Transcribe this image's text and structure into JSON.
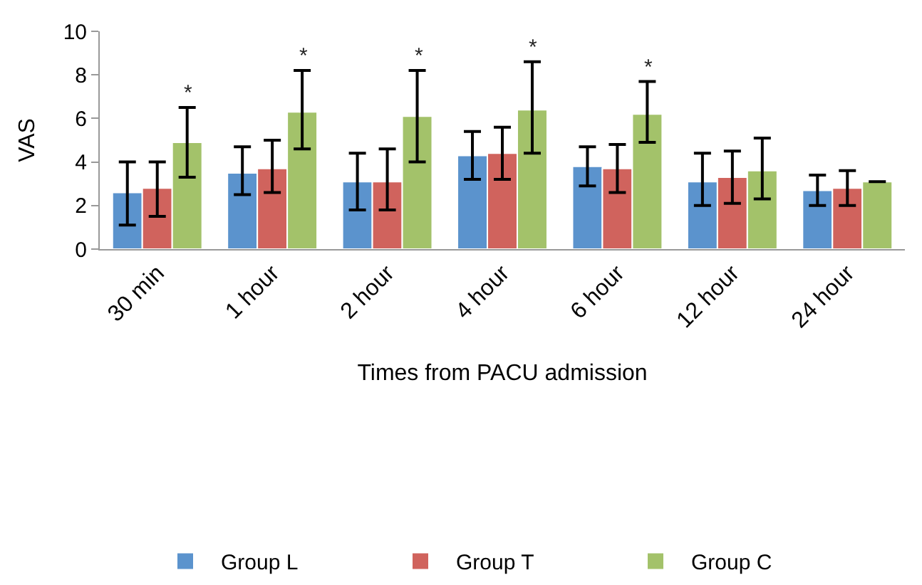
{
  "chart_data": {
    "type": "bar",
    "xlabel": "Times from PACU admission",
    "ylabel": "VAS",
    "categories": [
      "30 min",
      "1 hour",
      "2 hour",
      "4 hour",
      "6 hour",
      "12 hour",
      "24 hour"
    ],
    "series": [
      {
        "name": "Group L",
        "color": "#5b93cd",
        "values": [
          2.6,
          3.5,
          3.1,
          4.3,
          3.8,
          3.1,
          2.7
        ],
        "errors": [
          [
            1.1,
            4.0
          ],
          [
            2.5,
            4.7
          ],
          [
            1.8,
            4.4
          ],
          [
            3.2,
            5.4
          ],
          [
            2.9,
            4.7
          ],
          [
            2.0,
            4.4
          ],
          [
            2.0,
            3.4
          ]
        ]
      },
      {
        "name": "Group T",
        "color": "#d0635d",
        "values": [
          2.8,
          3.7,
          3.1,
          4.4,
          3.7,
          3.3,
          2.8
        ],
        "errors": [
          [
            1.5,
            4.0
          ],
          [
            2.6,
            5.0
          ],
          [
            1.8,
            4.6
          ],
          [
            3.2,
            5.6
          ],
          [
            2.6,
            4.8
          ],
          [
            2.1,
            4.5
          ],
          [
            2.0,
            3.6
          ]
        ]
      },
      {
        "name": "Group C",
        "color": "#a3c26a",
        "values": [
          4.9,
          6.3,
          6.1,
          6.4,
          6.2,
          3.6,
          3.1
        ],
        "errors": [
          [
            3.3,
            6.5
          ],
          [
            4.6,
            8.2
          ],
          [
            4.0,
            8.2
          ],
          [
            4.4,
            8.6
          ],
          [
            4.9,
            7.7
          ],
          [
            2.3,
            5.1
          ],
          null
        ],
        "value_labels": [
          "*",
          "*",
          "*",
          "*",
          "*",
          null,
          null
        ]
      }
    ],
    "ylim": [
      0,
      10
    ],
    "yticks": [
      0,
      2,
      4,
      6,
      8,
      10
    ],
    "legend": "bottom"
  }
}
